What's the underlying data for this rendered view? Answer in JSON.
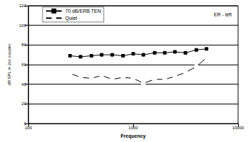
{
  "chart_data": {
    "type": "line",
    "title": "ER - left",
    "x_label": "Frequency",
    "y_label": "dB SPL in 2cc coupler",
    "log": "x",
    "x": [
      250,
      315,
      400,
      500,
      630,
      800,
      1000,
      1250,
      1600,
      2000,
      2500,
      3150,
      4000,
      5000
    ],
    "series": [
      {
        "name": "70 dB/ERB TEN",
        "color": "#000000",
        "marker": "square",
        "values": [
          69,
          68,
          69,
          70,
          70,
          69,
          71,
          70,
          72,
          72,
          73,
          72,
          75,
          76
        ]
      },
      {
        "name": "Quiet",
        "color": "#000000",
        "marker": "open_circle",
        "values": [
          51,
          47,
          46,
          49,
          45,
          47,
          46,
          41,
          45,
          45,
          48,
          52,
          58,
          67
        ]
      }
    ],
    "xlim": [
      100,
      10000
    ],
    "xticks": [
      100,
      1000,
      10000
    ],
    "ylim": [
      0,
      120
    ],
    "yticks": [
      0,
      20,
      40,
      60,
      80,
      100,
      120
    ],
    "grid": true,
    "legend": "upper left"
  }
}
